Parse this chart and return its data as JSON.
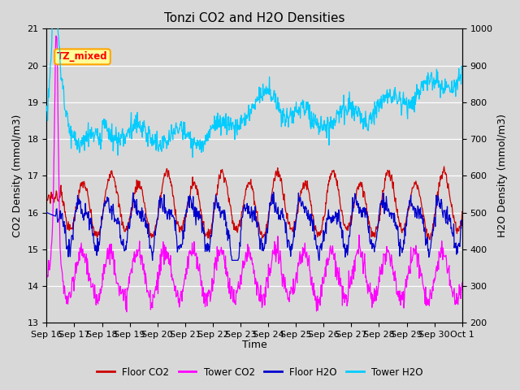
{
  "title": "Tonzi CO2 and H2O Densities",
  "xlabel": "Time",
  "ylabel_left": "CO2 Density (mmol/m3)",
  "ylabel_right": "H2O Density (mmol/m3)",
  "ylim_left": [
    13.0,
    21.0
  ],
  "ylim_right": [
    200,
    1000
  ],
  "xtick_labels": [
    "Sep 16",
    "Sep 17",
    "Sep 18",
    "Sep 19",
    "Sep 20",
    "Sep 21",
    "Sep 22",
    "Sep 23",
    "Sep 24",
    "Sep 25",
    "Sep 26",
    "Sep 27",
    "Sep 28",
    "Sep 29",
    "Sep 30",
    "Oct 1"
  ],
  "annotation_text": "TZ_mixed",
  "colors": {
    "floor_co2": "#cc0000",
    "tower_co2": "#ff00ff",
    "floor_h2o": "#0000cc",
    "tower_h2o": "#00ccff"
  },
  "legend_labels": [
    "Floor CO2",
    "Tower CO2",
    "Floor H2O",
    "Tower H2O"
  ],
  "bg_color": "#d8d8d8",
  "title_fontsize": 11,
  "axis_fontsize": 9,
  "tick_fontsize": 8
}
